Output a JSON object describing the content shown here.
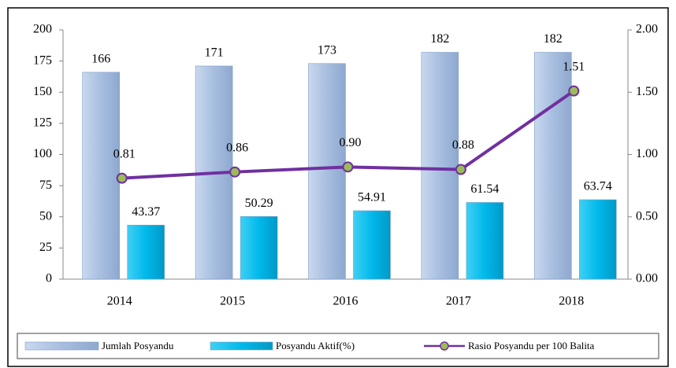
{
  "chart_data": {
    "type": "bar",
    "categories": [
      "2014",
      "2015",
      "2016",
      "2017",
      "2018"
    ],
    "series": [
      {
        "name": "Jumlah Posyandu",
        "color": "#a7bedf",
        "values": [
          166,
          171,
          173,
          182,
          182
        ]
      },
      {
        "name": "Posyandu Aktif(%)",
        "color": "#00b9ea",
        "values": [
          43.37,
          50.29,
          54.91,
          61.54,
          63.74
        ]
      },
      {
        "name": "Rasio Posyandu per 100 Balita",
        "type": "line",
        "axis": "y2",
        "color": "#7030a0",
        "marker_color": "#9bbb59",
        "values": [
          0.81,
          0.86,
          0.9,
          0.88,
          1.51
        ],
        "value_labels": [
          "0.81",
          "0.86",
          "0.90",
          "0.88",
          "1.51"
        ]
      }
    ],
    "ylim": [
      0,
      200
    ],
    "yticks": [
      0,
      25,
      50,
      75,
      100,
      125,
      150,
      175,
      200
    ],
    "y2lim": [
      0,
      2
    ],
    "y2ticks": [
      {
        "value": 0,
        "label": "0.00"
      },
      {
        "value": 0.5,
        "label": "0.50"
      },
      {
        "value": 1,
        "label": "1.00"
      },
      {
        "value": 1.5,
        "label": "1.50"
      },
      {
        "value": 2,
        "label": "2.00"
      }
    ],
    "legend": "bottom"
  }
}
